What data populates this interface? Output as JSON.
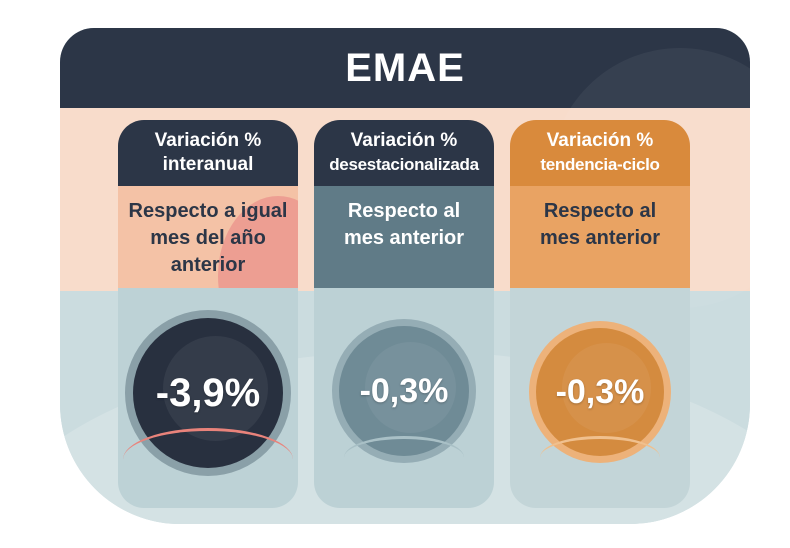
{
  "title": "EMAE",
  "cards": [
    {
      "head_line1": "Variación %",
      "head_line2": "interanual",
      "desc_line1": "Respecto a igual",
      "desc_line2": "mes del año",
      "desc_line3": "anterior",
      "value": "-3,9%"
    },
    {
      "head_line1": "Variación %",
      "head_line2": "desestacionalizada",
      "desc_line1": "Respecto al",
      "desc_line2": "mes anterior",
      "value": "-0,3%"
    },
    {
      "head_line1": "Variación %",
      "head_line2": "tendencia-ciclo",
      "desc_line1": "Respecto al",
      "desc_line2": "mes anterior",
      "value": "-0,3%"
    }
  ],
  "colors": {
    "navy": "#2c3647",
    "peach": "#f8dccb",
    "light_blue": "#cbdcdf",
    "slate": "#607b87",
    "orange": "#d98a3c",
    "salmon": "#f4c2a6"
  }
}
